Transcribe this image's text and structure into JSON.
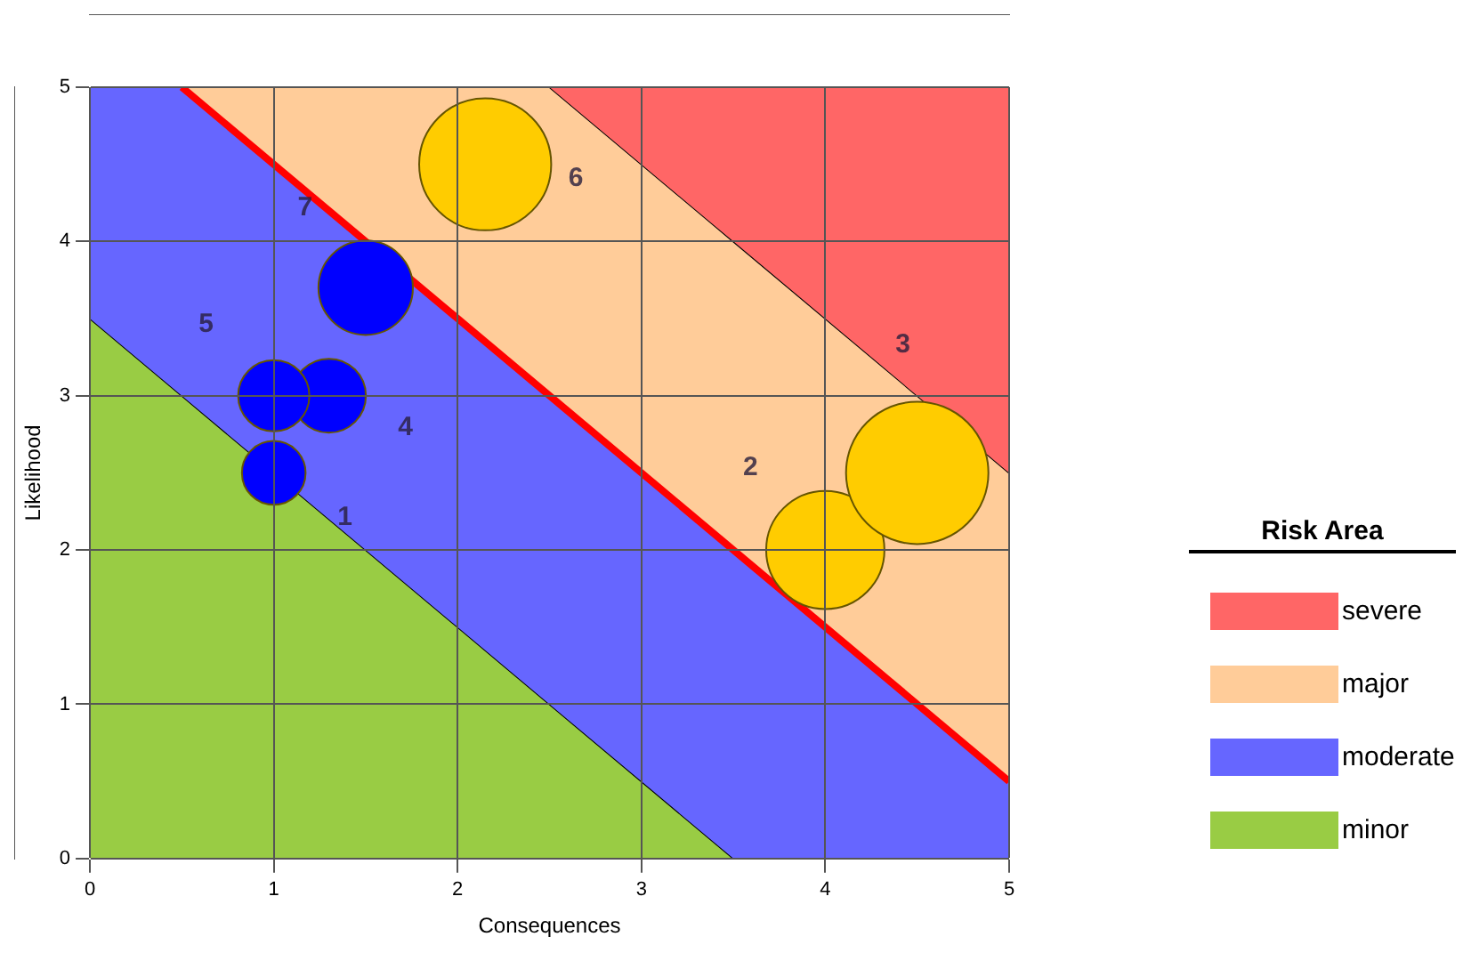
{
  "chart_data": {
    "type": "bubble",
    "xlabel": "Consequences",
    "ylabel": "Likelihood",
    "legend_title": "Risk Area",
    "stacked": true,
    "series": [
      {
        "type": "area",
        "name": "minor",
        "color": "#99cc44",
        "x": [
          0,
          0.5,
          2.5,
          3.5,
          5
        ],
        "values": [
          3.5,
          3,
          1,
          0,
          0
        ]
      },
      {
        "type": "area",
        "name": "moderate",
        "color": "#6666ff",
        "x": [
          0,
          0.5,
          2.5,
          3.5,
          5
        ],
        "values": [
          1.5,
          2,
          2,
          2,
          0.5
        ]
      },
      {
        "type": "area",
        "name": "major",
        "color": "#ffcc99",
        "x": [
          0,
          0.5,
          2.5,
          3.5,
          5
        ],
        "values": [
          0,
          0,
          2,
          2,
          2
        ]
      },
      {
        "type": "area",
        "name": "severe",
        "color": "#ff6666",
        "x": [
          0,
          0.5,
          2.5,
          3.5,
          5
        ],
        "values": [
          0,
          0,
          0,
          1,
          2.5
        ]
      },
      {
        "type": "line",
        "color": "#ff0000",
        "x": [
          0.5,
          5
        ],
        "values": [
          5,
          0.5
        ]
      },
      {
        "x": [
          1,
          1.3,
          1,
          1.5,
          2.15,
          4,
          4.5
        ],
        "values": [
          2.5,
          3,
          3,
          3.7,
          4.5,
          2,
          2.5
        ],
        "sizes": [
          0.2,
          0.27,
          0.25,
          0.44,
          0.86,
          0.69,
          1
        ],
        "colors": [
          "#0000ff",
          "#0000ff",
          "#0000ff",
          "#0000ff",
          "#ffcc00",
          "#ffcc00",
          "#ffcc00"
        ]
      }
    ],
    "annotations": [
      "1",
      "2",
      "3",
      "4",
      "5",
      "6",
      "7"
    ],
    "xlim": [
      0,
      5
    ],
    "xticks": [
      0,
      1,
      2,
      3,
      4,
      5
    ],
    "ylim": [
      0,
      5
    ],
    "yticks": [
      0,
      1,
      2,
      3,
      4,
      5
    ],
    "grid": true,
    "legend": "right",
    "line_style": "solid"
  }
}
